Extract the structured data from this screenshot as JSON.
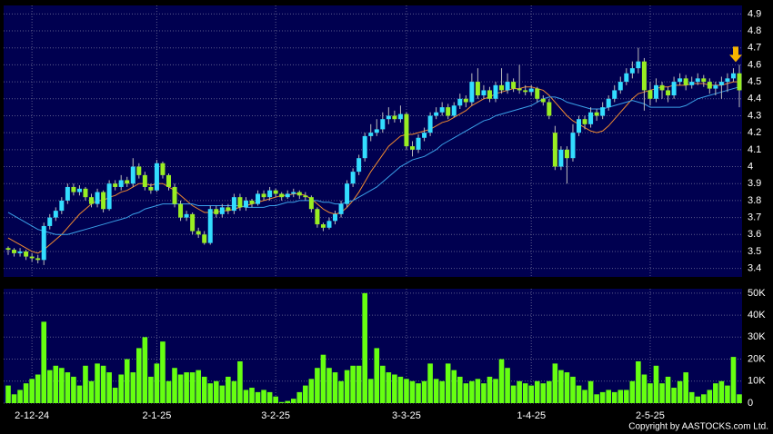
{
  "chart_data": {
    "type": "candlestick",
    "categories": [
      null,
      null,
      null,
      null,
      "2-12-24",
      null,
      null,
      null,
      null,
      null,
      null,
      null,
      null,
      null,
      null,
      null,
      null,
      null,
      null,
      null,
      null,
      null,
      null,
      null,
      null,
      "2-1-25",
      null,
      null,
      null,
      null,
      null,
      null,
      null,
      null,
      null,
      null,
      null,
      null,
      null,
      null,
      null,
      null,
      null,
      null,
      null,
      "3-2-25",
      null,
      null,
      null,
      null,
      null,
      null,
      null,
      null,
      null,
      null,
      null,
      null,
      null,
      null,
      null,
      null,
      null,
      null,
      null,
      null,
      null,
      "3-3-25",
      null,
      null,
      null,
      null,
      null,
      null,
      null,
      null,
      null,
      null,
      null,
      null,
      null,
      null,
      null,
      null,
      null,
      null,
      null,
      null,
      "1-4-25",
      null,
      null,
      null,
      null,
      null,
      null,
      null,
      null,
      null,
      null,
      null,
      null,
      null,
      null,
      null,
      null,
      null,
      null,
      null,
      "2-5-25",
      null,
      null,
      null,
      null,
      null,
      null,
      null,
      null,
      null,
      null,
      null,
      null,
      null,
      null,
      null
    ],
    "ohlc": [
      [
        3.52,
        3.53,
        3.48,
        3.51
      ],
      [
        3.51,
        3.52,
        3.47,
        3.49
      ],
      [
        3.49,
        3.52,
        3.47,
        3.5
      ],
      [
        3.5,
        3.51,
        3.45,
        3.47
      ],
      [
        3.47,
        3.49,
        3.44,
        3.46
      ],
      [
        3.46,
        3.48,
        3.43,
        3.45
      ],
      [
        3.45,
        3.67,
        3.42,
        3.65
      ],
      [
        3.65,
        3.72,
        3.63,
        3.7
      ],
      [
        3.7,
        3.76,
        3.68,
        3.74
      ],
      [
        3.74,
        3.82,
        3.72,
        3.8
      ],
      [
        3.8,
        3.9,
        3.78,
        3.88
      ],
      [
        3.88,
        3.9,
        3.83,
        3.85
      ],
      [
        3.85,
        3.89,
        3.83,
        3.87
      ],
      [
        3.87,
        3.88,
        3.8,
        3.82
      ],
      [
        3.82,
        3.84,
        3.76,
        3.78
      ],
      [
        3.78,
        3.87,
        3.76,
        3.85
      ],
      [
        3.85,
        3.86,
        3.73,
        3.75
      ],
      [
        3.75,
        3.92,
        3.74,
        3.9
      ],
      [
        3.9,
        3.92,
        3.86,
        3.88
      ],
      [
        3.88,
        3.95,
        3.86,
        3.92
      ],
      [
        3.92,
        3.94,
        3.88,
        3.9
      ],
      [
        3.9,
        4.05,
        3.88,
        4.0
      ],
      [
        4.0,
        4.02,
        3.93,
        3.95
      ],
      [
        3.95,
        3.97,
        3.86,
        3.88
      ],
      [
        3.88,
        3.9,
        3.84,
        3.86
      ],
      [
        3.86,
        4.04,
        3.85,
        4.02
      ],
      [
        4.02,
        4.03,
        3.93,
        3.95
      ],
      [
        3.95,
        3.96,
        3.86,
        3.88
      ],
      [
        3.88,
        3.9,
        3.76,
        3.78
      ],
      [
        3.78,
        3.8,
        3.68,
        3.7
      ],
      [
        3.7,
        3.74,
        3.68,
        3.72
      ],
      [
        3.72,
        3.73,
        3.6,
        3.62
      ],
      [
        3.62,
        3.64,
        3.58,
        3.6
      ],
      [
        3.6,
        3.62,
        3.54,
        3.55
      ],
      [
        3.55,
        3.77,
        3.54,
        3.75
      ],
      [
        3.75,
        3.77,
        3.7,
        3.72
      ],
      [
        3.72,
        3.78,
        3.7,
        3.76
      ],
      [
        3.76,
        3.78,
        3.72,
        3.74
      ],
      [
        3.74,
        3.84,
        3.72,
        3.82
      ],
      [
        3.82,
        3.84,
        3.74,
        3.76
      ],
      [
        3.76,
        3.82,
        3.74,
        3.8
      ],
      [
        3.8,
        3.81,
        3.76,
        3.78
      ],
      [
        3.78,
        3.86,
        3.77,
        3.84
      ],
      [
        3.84,
        3.86,
        3.8,
        3.82
      ],
      [
        3.82,
        3.88,
        3.8,
        3.86
      ],
      [
        3.86,
        3.87,
        3.82,
        3.84
      ],
      [
        3.84,
        3.85,
        3.8,
        3.82
      ],
      [
        3.82,
        3.86,
        3.81,
        3.84
      ],
      [
        3.84,
        3.87,
        3.82,
        3.85
      ],
      [
        3.85,
        3.86,
        3.81,
        3.83
      ],
      [
        3.83,
        3.85,
        3.8,
        3.82
      ],
      [
        3.82,
        3.83,
        3.73,
        3.75
      ],
      [
        3.75,
        3.76,
        3.64,
        3.66
      ],
      [
        3.66,
        3.67,
        3.62,
        3.64
      ],
      [
        3.64,
        3.7,
        3.63,
        3.68
      ],
      [
        3.68,
        3.74,
        3.66,
        3.72
      ],
      [
        3.72,
        3.8,
        3.7,
        3.78
      ],
      [
        3.78,
        3.92,
        3.76,
        3.9
      ],
      [
        3.9,
        3.99,
        3.88,
        3.97
      ],
      [
        3.97,
        4.07,
        3.95,
        4.05
      ],
      [
        4.05,
        4.2,
        4.03,
        4.18
      ],
      [
        4.18,
        4.25,
        4.15,
        4.2
      ],
      [
        4.2,
        4.28,
        4.18,
        4.22
      ],
      [
        4.22,
        4.32,
        4.2,
        4.28
      ],
      [
        4.28,
        4.35,
        4.25,
        4.3
      ],
      [
        4.3,
        4.33,
        4.26,
        4.28
      ],
      [
        4.28,
        4.36,
        4.26,
        4.31
      ],
      [
        4.31,
        4.32,
        4.1,
        4.12
      ],
      [
        4.12,
        4.15,
        4.06,
        4.1
      ],
      [
        4.1,
        4.19,
        4.08,
        4.17
      ],
      [
        4.17,
        4.23,
        4.15,
        4.2
      ],
      [
        4.2,
        4.32,
        4.18,
        4.3
      ],
      [
        4.3,
        4.35,
        4.28,
        4.32
      ],
      [
        4.32,
        4.38,
        4.3,
        4.35
      ],
      [
        4.35,
        4.37,
        4.28,
        4.3
      ],
      [
        4.3,
        4.38,
        4.29,
        4.36
      ],
      [
        4.36,
        4.43,
        4.34,
        4.4
      ],
      [
        4.4,
        4.42,
        4.35,
        4.38
      ],
      [
        4.38,
        4.55,
        4.36,
        4.5
      ],
      [
        4.5,
        4.58,
        4.4,
        4.42
      ],
      [
        4.42,
        4.48,
        4.4,
        4.45
      ],
      [
        4.45,
        4.47,
        4.38,
        4.4
      ],
      [
        4.4,
        4.5,
        4.38,
        4.48
      ],
      [
        4.48,
        4.58,
        4.43,
        4.45
      ],
      [
        4.45,
        4.55,
        4.43,
        4.5
      ],
      [
        4.5,
        4.52,
        4.44,
        4.46
      ],
      [
        4.46,
        4.6,
        4.43,
        4.45
      ],
      [
        4.45,
        4.48,
        4.42,
        4.44
      ],
      [
        4.44,
        4.48,
        4.42,
        4.46
      ],
      [
        4.46,
        4.47,
        4.38,
        4.4
      ],
      [
        4.4,
        4.42,
        4.36,
        4.38
      ],
      [
        4.38,
        4.4,
        4.28,
        4.3
      ],
      [
        4.2,
        4.24,
        3.98,
        4.0
      ],
      [
        4.0,
        4.12,
        3.98,
        4.1
      ],
      [
        4.1,
        4.12,
        3.9,
        4.05
      ],
      [
        4.05,
        4.25,
        4.03,
        4.2
      ],
      [
        4.2,
        4.3,
        4.18,
        4.28
      ],
      [
        4.28,
        4.3,
        4.22,
        4.25
      ],
      [
        4.25,
        4.35,
        4.23,
        4.32
      ],
      [
        4.32,
        4.34,
        4.27,
        4.3
      ],
      [
        4.3,
        4.38,
        4.28,
        4.35
      ],
      [
        4.35,
        4.42,
        4.33,
        4.4
      ],
      [
        4.4,
        4.48,
        4.38,
        4.45
      ],
      [
        4.45,
        4.53,
        4.43,
        4.5
      ],
      [
        4.5,
        4.58,
        4.48,
        4.55
      ],
      [
        4.55,
        4.62,
        4.52,
        4.58
      ],
      [
        4.58,
        4.7,
        4.55,
        4.62
      ],
      [
        4.62,
        4.64,
        4.33,
        4.45
      ],
      [
        4.45,
        4.5,
        4.36,
        4.4
      ],
      [
        4.4,
        4.52,
        4.38,
        4.48
      ],
      [
        4.48,
        4.5,
        4.4,
        4.45
      ],
      [
        4.45,
        4.47,
        4.38,
        4.42
      ],
      [
        4.42,
        4.53,
        4.4,
        4.5
      ],
      [
        4.5,
        4.55,
        4.48,
        4.52
      ],
      [
        4.52,
        4.54,
        4.45,
        4.48
      ],
      [
        4.48,
        4.53,
        4.46,
        4.5
      ],
      [
        4.5,
        4.55,
        4.48,
        4.52
      ],
      [
        4.52,
        4.54,
        4.47,
        4.5
      ],
      [
        4.5,
        4.52,
        4.43,
        4.46
      ],
      [
        4.46,
        4.5,
        4.42,
        4.48
      ],
      [
        4.48,
        4.53,
        4.4,
        4.5
      ],
      [
        4.5,
        4.55,
        4.44,
        4.52
      ],
      [
        4.52,
        4.58,
        4.5,
        4.55
      ],
      [
        4.55,
        4.6,
        4.35,
        4.45
      ]
    ],
    "up_color": "#33ddff",
    "down_color": "#99ee22",
    "series": [
      {
        "color": "#f08a30",
        "values": [
          3.58,
          3.56,
          3.54,
          3.52,
          3.5,
          3.49,
          3.51,
          3.54,
          3.57,
          3.6,
          3.64,
          3.68,
          3.72,
          3.75,
          3.78,
          3.8,
          3.8,
          3.82,
          3.83,
          3.85,
          3.86,
          3.88,
          3.9,
          3.9,
          3.89,
          3.9,
          3.9,
          3.88,
          3.86,
          3.83,
          3.8,
          3.77,
          3.75,
          3.73,
          3.73,
          3.73,
          3.74,
          3.74,
          3.75,
          3.76,
          3.77,
          3.78,
          3.79,
          3.8,
          3.81,
          3.82,
          3.83,
          3.83,
          3.84,
          3.84,
          3.83,
          3.81,
          3.78,
          3.75,
          3.73,
          3.72,
          3.73,
          3.76,
          3.8,
          3.85,
          3.91,
          3.97,
          4.02,
          4.07,
          4.12,
          4.15,
          4.18,
          4.19,
          4.19,
          4.2,
          4.21,
          4.22,
          4.24,
          4.26,
          4.27,
          4.29,
          4.31,
          4.33,
          4.36,
          4.38,
          4.4,
          4.41,
          4.43,
          4.44,
          4.45,
          4.46,
          4.46,
          4.47,
          4.47,
          4.46,
          4.45,
          4.42,
          4.38,
          4.34,
          4.3,
          4.27,
          4.25,
          4.23,
          4.21,
          4.2,
          4.21,
          4.24,
          4.28,
          4.32,
          4.36,
          4.4,
          4.43,
          4.44,
          4.45,
          4.46,
          4.47,
          4.47,
          4.48,
          4.48,
          4.48,
          4.49,
          4.49,
          4.49,
          4.48,
          4.48,
          4.48,
          4.49,
          4.5,
          4.5
        ]
      },
      {
        "color": "#3aa0e8",
        "values": [
          3.73,
          3.71,
          3.69,
          3.67,
          3.65,
          3.63,
          3.62,
          3.61,
          3.6,
          3.6,
          3.6,
          3.61,
          3.62,
          3.63,
          3.64,
          3.65,
          3.66,
          3.67,
          3.68,
          3.69,
          3.7,
          3.72,
          3.73,
          3.75,
          3.76,
          3.77,
          3.78,
          3.78,
          3.78,
          3.78,
          3.78,
          3.78,
          3.77,
          3.77,
          3.77,
          3.77,
          3.77,
          3.77,
          3.77,
          3.77,
          3.76,
          3.76,
          3.76,
          3.76,
          3.77,
          3.77,
          3.78,
          3.79,
          3.79,
          3.8,
          3.8,
          3.8,
          3.8,
          3.79,
          3.79,
          3.78,
          3.78,
          3.79,
          3.8,
          3.82,
          3.84,
          3.86,
          3.88,
          3.91,
          3.94,
          3.97,
          4.0,
          4.02,
          4.04,
          4.05,
          4.06,
          4.08,
          4.1,
          4.13,
          4.15,
          4.17,
          4.19,
          4.21,
          4.23,
          4.25,
          4.27,
          4.28,
          4.3,
          4.31,
          4.32,
          4.33,
          4.34,
          4.35,
          4.36,
          4.38,
          4.4,
          4.41,
          4.41,
          4.4,
          4.38,
          4.37,
          4.36,
          4.35,
          4.34,
          4.34,
          4.34,
          4.35,
          4.36,
          4.37,
          4.38,
          4.39,
          4.38,
          4.37,
          4.35,
          4.35,
          4.35,
          4.35,
          4.35,
          4.35,
          4.36,
          4.38,
          4.4,
          4.41,
          4.42,
          4.43,
          4.44,
          4.45,
          4.46,
          4.47
        ]
      }
    ],
    "ylim": [
      3.35,
      4.95
    ],
    "yticks": [
      3.4,
      3.5,
      3.6,
      3.7,
      3.8,
      3.9,
      4,
      4.1,
      4.2,
      4.3,
      4.4,
      4.5,
      4.6,
      4.7,
      4.8,
      4.9
    ],
    "volume": {
      "color": "#66ff11",
      "values": [
        8000,
        4000,
        6000,
        9000,
        11000,
        13000,
        37000,
        15000,
        17000,
        16000,
        14000,
        12000,
        8000,
        17000,
        10000,
        18000,
        17000,
        14000,
        7000,
        13000,
        20000,
        14000,
        25000,
        30000,
        12000,
        18000,
        28000,
        10000,
        16000,
        13000,
        14000,
        14000,
        15000,
        12000,
        9000,
        10000,
        8000,
        12000,
        10000,
        19000,
        6000,
        7000,
        5000,
        6000,
        5000,
        3000,
        500,
        1000,
        2000,
        5000,
        8000,
        11000,
        16000,
        22000,
        16000,
        14000,
        10000,
        15000,
        17000,
        17000,
        50000,
        11000,
        25000,
        17000,
        14000,
        13000,
        12000,
        11000,
        10000,
        9000,
        10000,
        18000,
        11000,
        10000,
        18000,
        15000,
        12000,
        9000,
        10000,
        11000,
        9000,
        12000,
        11000,
        20000,
        16000,
        8000,
        10000,
        9000,
        8000,
        10000,
        9000,
        10000,
        18000,
        15000,
        14000,
        12000,
        8000,
        6000,
        10000,
        4000,
        5000,
        6000,
        5000,
        6000,
        6000,
        10000,
        19000,
        13000,
        9000,
        17000,
        9000,
        12000,
        7000,
        10000,
        14000,
        5000,
        3000,
        4000,
        6000,
        9000,
        10000,
        8000,
        21000,
        4000
      ],
      "ylim": [
        0,
        52000
      ],
      "yticks": [
        {
          "value": 0,
          "label": "0"
        },
        {
          "value": 10000,
          "label": "10K"
        },
        {
          "value": 20000,
          "label": "20K"
        },
        {
          "value": 30000,
          "label": "30K"
        },
        {
          "value": 40000,
          "label": "40K"
        },
        {
          "value": 50000,
          "label": "50K"
        }
      ]
    },
    "grid": true,
    "copyright": "Copyright by AASTOCKS.com Ltd."
  }
}
